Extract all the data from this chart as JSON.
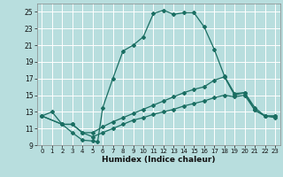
{
  "xlabel": "Humidex (Indice chaleur)",
  "bg_color": "#b8dede",
  "line_color": "#1a6e62",
  "grid_color": "#ffffff",
  "xlim": [
    -0.5,
    23.5
  ],
  "ylim": [
    9,
    26
  ],
  "xticks": [
    0,
    1,
    2,
    3,
    4,
    5,
    6,
    7,
    8,
    9,
    10,
    11,
    12,
    13,
    14,
    15,
    16,
    17,
    18,
    19,
    20,
    21,
    22,
    23
  ],
  "yticks": [
    9,
    11,
    13,
    15,
    17,
    19,
    21,
    23,
    25
  ],
  "line1_x": [
    0,
    1,
    2,
    3,
    4,
    5,
    5.5,
    6,
    7,
    8,
    9,
    10,
    11,
    12,
    13,
    14,
    15,
    16,
    17,
    18,
    19,
    20,
    21,
    22,
    23
  ],
  "line1_y": [
    12.5,
    13.0,
    11.5,
    10.5,
    9.6,
    9.5,
    9.4,
    13.5,
    17.0,
    20.3,
    21.0,
    22.0,
    24.8,
    25.2,
    24.7,
    24.9,
    24.9,
    23.2,
    20.5,
    17.3,
    15.2,
    15.3,
    13.2,
    12.5,
    12.5
  ],
  "line2_x": [
    0,
    2,
    3,
    4,
    5,
    6,
    7,
    8,
    9,
    10,
    11,
    12,
    13,
    14,
    15,
    16,
    17,
    18,
    19,
    20,
    21,
    22,
    23
  ],
  "line2_y": [
    12.5,
    11.5,
    11.5,
    10.5,
    10.5,
    11.2,
    11.8,
    12.3,
    12.8,
    13.3,
    13.8,
    14.3,
    14.8,
    15.3,
    15.7,
    16.0,
    16.8,
    17.2,
    15.0,
    15.3,
    13.5,
    12.5,
    12.5
  ],
  "line3_x": [
    0,
    2,
    3,
    4,
    5,
    6,
    7,
    8,
    9,
    10,
    11,
    12,
    13,
    14,
    15,
    16,
    17,
    18,
    19,
    20,
    21,
    22,
    23
  ],
  "line3_y": [
    12.5,
    11.5,
    11.5,
    10.5,
    10.0,
    10.5,
    11.0,
    11.5,
    12.0,
    12.3,
    12.7,
    13.0,
    13.3,
    13.7,
    14.0,
    14.3,
    14.7,
    15.0,
    14.8,
    15.0,
    13.2,
    12.5,
    12.3
  ]
}
